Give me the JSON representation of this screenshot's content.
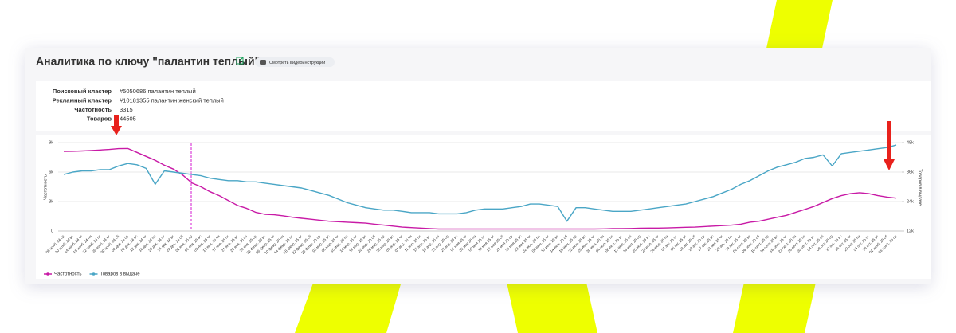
{
  "header": {
    "title": "Аналитика по ключу \"палантин теплый\"",
    "button": "Смотреть видеоинструкции"
  },
  "info": {
    "rows": [
      {
        "label": "Поисковый кластер",
        "value": "#5050686 палантин теплый"
      },
      {
        "label": "Рекламный кластер",
        "value": "#10181355 палантин женский теплый"
      },
      {
        "label": "Частотность",
        "value": "3315"
      },
      {
        "label": "Товаров",
        "value": "44505"
      }
    ]
  },
  "chart_data": {
    "type": "line",
    "y_label": "Частотность",
    "y2_label": "Товаров в выдаче",
    "categories": [
      "06 нояб. 24 ср",
      "10 нояб. 24 вс",
      "14 нояб. 24 чт",
      "18 нояб. 24 пн",
      "22 нояб. 24 пт",
      "26 нояб. 24 вт",
      "30 нояб. 24 сб",
      "04 дек. 24 ср",
      "08 дек. 24 вс",
      "12 дек. 24 чт",
      "16 дек. 24 пн",
      "20 дек. 24 пт",
      "24 дек. 24 вт",
      "28 дек. 24 сб",
      "01 янв. 25 ср",
      "05 янв. 25 вс",
      "09 янв. 25 чт",
      "13 янв. 25 пн",
      "17 янв. 25 пт",
      "21 янв. 25 вт",
      "25 янв. 25 сб",
      "29 янв. 25 ср",
      "02 февр. 25 вс",
      "06 февр. 25 чт",
      "10 февр. 25 пн",
      "14 февр. 25 пт",
      "18 февр. 25 вт",
      "22 февр. 25 сб",
      "26 февр. 25 ср",
      "02 мар. 25 вс",
      "06 мар. 25 чт",
      "10 мар. 25 пн",
      "14 мар. 25 пт",
      "18 мар. 25 вт",
      "22 мар. 25 сб",
      "26 мар. 25 ср",
      "30 мар. 25 вс",
      "03 апр. 25 чт",
      "07 апр. 25 пн",
      "11 апр. 25 пт",
      "15 апр. 25 вт",
      "19 апр. 25 сб",
      "23 апр. 25 ср",
      "27 апр. 25 вс",
      "01 мая 25 чт",
      "05 мая 25 пн",
      "09 мая 25 пт",
      "13 мая 25 вт",
      "17 мая 25 сб",
      "21 мая 25 ср",
      "25 мая 25 вс",
      "29 мая 25 чт",
      "02 июн. 25 пн",
      "06 июн. 25 пт",
      "10 июн. 25 вт",
      "14 июн. 25 сб",
      "18 июн. 25 ср",
      "22 июн. 25 вс",
      "26 июн. 25 чт",
      "30 июн. 25 пн",
      "04 июл. 25 пт",
      "08 июл. 25 вт",
      "12 июл. 25 сб",
      "16 июл. 25 ср",
      "20 июл. 25 вс",
      "24 июл. 25 чт",
      "28 июл. 25 пн",
      "01 авг. 25 пт",
      "05 авг. 25 вт",
      "09 авг. 25 сб",
      "13 авг. 25 ср",
      "17 авг. 25 вс",
      "21 авг. 25 чт",
      "25 авг. 25 пн",
      "29 авг. 25 пт",
      "02 сент. 25 вт",
      "06 сент. 25 сб",
      "10 сент. 25 ср",
      "14 сент. 25 вс",
      "18 сент. 25 чт",
      "22 сент. 25 пн",
      "26 сент. 25 пт",
      "30 сент. 25 вт",
      "04 окт. 25 сб",
      "08 окт. 25 ср",
      "12 окт. 25 вс",
      "16 окт. 25 чт",
      "20 окт. 25 пн",
      "24 окт. 25 пт",
      "28 окт. 25 вт",
      "01 нояб. 25 сб",
      "05 нояб. 25 ср"
    ],
    "series": [
      {
        "name": "Частотность",
        "color": "#c81aa6",
        "values": [
          8100,
          8120,
          8150,
          8200,
          8250,
          8300,
          8380,
          8400,
          8000,
          7600,
          7200,
          6700,
          6300,
          5700,
          4900,
          4500,
          4000,
          3600,
          3100,
          2600,
          2300,
          1900,
          1700,
          1650,
          1550,
          1400,
          1300,
          1200,
          1100,
          1000,
          950,
          900,
          850,
          800,
          700,
          600,
          500,
          400,
          350,
          300,
          250,
          200,
          200,
          200,
          200,
          200,
          200,
          200,
          200,
          200,
          200,
          200,
          200,
          200,
          200,
          200,
          200,
          200,
          200,
          220,
          240,
          250,
          260,
          280,
          300,
          300,
          320,
          350,
          380,
          400,
          450,
          500,
          550,
          600,
          700,
          900,
          1000,
          1200,
          1400,
          1600,
          1900,
          2200,
          2500,
          2900,
          3300,
          3600,
          3800,
          3900,
          3800,
          3600,
          3450,
          3350
        ]
      },
      {
        "name": "Товаров в выдаче",
        "color": "#4aa6c6",
        "axis": "y2",
        "values": [
          35000,
          36000,
          36500,
          36500,
          37000,
          37000,
          38500,
          39500,
          39000,
          37500,
          31000,
          36500,
          36000,
          35500,
          35000,
          34500,
          33500,
          33000,
          32500,
          32500,
          32000,
          32000,
          31500,
          31000,
          30500,
          30000,
          29500,
          28500,
          27500,
          26500,
          25000,
          23500,
          22500,
          21500,
          21000,
          20500,
          20500,
          20000,
          19500,
          19500,
          19500,
          19000,
          19000,
          19000,
          19500,
          20500,
          21000,
          21000,
          21000,
          21500,
          22000,
          23000,
          23000,
          22500,
          22000,
          16000,
          21500,
          21500,
          21000,
          20500,
          20000,
          20000,
          20000,
          20500,
          21000,
          21500,
          22000,
          22500,
          23000,
          24000,
          25000,
          26000,
          27500,
          29000,
          31000,
          32500,
          34500,
          36500,
          38000,
          39000,
          40000,
          41500,
          42000,
          43000,
          38500,
          43500,
          44000,
          44500,
          45000,
          45500,
          46000,
          47000
        ]
      }
    ],
    "ylim": [
      0,
      9000
    ],
    "yticks": [
      0,
      {
        "value": 3000,
        "label": "3k"
      },
      {
        "value": 6000,
        "label": "6k"
      },
      {
        "value": 9000,
        "label": "9k"
      }
    ],
    "y2lim": [
      12000,
      48000
    ],
    "y2ticks": [
      {
        "value": 12000,
        "label": "12k"
      },
      {
        "value": 24000,
        "label": "24k"
      },
      {
        "value": 36000,
        "label": "36k"
      },
      {
        "value": 48000,
        "label": "48k"
      }
    ],
    "grid": true,
    "legend": "bottom-left"
  }
}
